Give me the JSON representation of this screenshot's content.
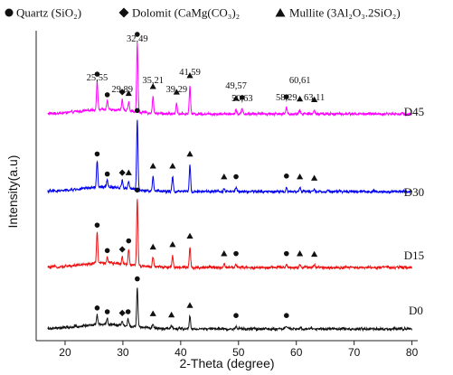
{
  "chart_data": {
    "type": "line",
    "xlabel": "2-Theta (degree)",
    "ylabel": "Intensity(a.u)",
    "xlim": [
      15,
      81
    ],
    "x_ticks": [
      "20",
      "30",
      "40",
      "50",
      "60",
      "70",
      "80"
    ],
    "y_ticks_shown": false,
    "grid": false,
    "legend_position": "top",
    "legend": [
      {
        "name": "Quartz (SiO₂)",
        "marker": "circle",
        "marker_name": "circle-marker-icon"
      },
      {
        "name": "Dolomit (CaMg(CO₃)₂",
        "marker": "diamond",
        "marker_name": "diamond-marker-icon"
      },
      {
        "name": "Mullite (3Al₂O₃.2SiO₂)",
        "marker": "triangle",
        "marker_name": "triangle-marker-icon"
      }
    ],
    "peak_labels": [
      "25,55",
      "29,89",
      "32,49",
      "35,21",
      "39,29",
      "41,59",
      "49,57",
      "50,63",
      "58,29",
      "60,61",
      "63,11"
    ],
    "peak_labels_series": "D45",
    "series": [
      {
        "name": "D45",
        "color": "#ff00ff",
        "peaks": [
          {
            "x": 25.55,
            "h": 0.42,
            "phase": "quartz"
          },
          {
            "x": 27.3,
            "h": 0.12,
            "phase": "quartz"
          },
          {
            "x": 29.89,
            "h": 0.16,
            "phase": "dolomit"
          },
          {
            "x": 31.0,
            "h": 0.14,
            "phase": "mullite"
          },
          {
            "x": 32.49,
            "h": 1.0,
            "phase": "quartz"
          },
          {
            "x": 35.21,
            "h": 0.24,
            "phase": "mullite"
          },
          {
            "x": 39.29,
            "h": 0.16,
            "phase": "mullite"
          },
          {
            "x": 41.59,
            "h": 0.4,
            "phase": "mullite"
          },
          {
            "x": 49.57,
            "h": 0.07,
            "phase": "mullite"
          },
          {
            "x": 50.63,
            "h": 0.08,
            "phase": "quartz"
          },
          {
            "x": 58.29,
            "h": 0.09,
            "phase": "quartz"
          },
          {
            "x": 60.61,
            "h": 0.06,
            "phase": "mullite"
          },
          {
            "x": 63.11,
            "h": 0.05,
            "phase": "mullite"
          }
        ]
      },
      {
        "name": "D30",
        "color": "#0000ee",
        "peaks": [
          {
            "x": 25.55,
            "h": 0.4,
            "phase": "quartz"
          },
          {
            "x": 27.3,
            "h": 0.1,
            "phase": "quartz"
          },
          {
            "x": 29.89,
            "h": 0.12,
            "phase": "dolomit"
          },
          {
            "x": 31.0,
            "h": 0.12,
            "phase": "mullite"
          },
          {
            "x": 32.49,
            "h": 1.05,
            "phase": "quartz"
          },
          {
            "x": 35.21,
            "h": 0.22,
            "phase": "mullite"
          },
          {
            "x": 38.6,
            "h": 0.22,
            "phase": "mullite"
          },
          {
            "x": 41.59,
            "h": 0.4,
            "phase": "mullite"
          },
          {
            "x": 47.5,
            "h": 0.06,
            "phase": "mullite"
          },
          {
            "x": 49.57,
            "h": 0.06,
            "phase": "quartz"
          },
          {
            "x": 58.29,
            "h": 0.07,
            "phase": "quartz"
          },
          {
            "x": 60.61,
            "h": 0.06,
            "phase": "mullite"
          },
          {
            "x": 63.11,
            "h": 0.04,
            "phase": "mullite"
          }
        ]
      },
      {
        "name": "D15",
        "color": "#ee1111",
        "peaks": [
          {
            "x": 25.55,
            "h": 0.52,
            "phase": "quartz"
          },
          {
            "x": 27.3,
            "h": 0.1,
            "phase": "quartz"
          },
          {
            "x": 29.89,
            "h": 0.12,
            "phase": "dolomit"
          },
          {
            "x": 31.0,
            "h": 0.26,
            "phase": "quartz"
          },
          {
            "x": 32.49,
            "h": 1.1,
            "phase": "quartz"
          },
          {
            "x": 35.21,
            "h": 0.16,
            "phase": "mullite"
          },
          {
            "x": 38.6,
            "h": 0.2,
            "phase": "mullite"
          },
          {
            "x": 41.59,
            "h": 0.34,
            "phase": "mullite"
          },
          {
            "x": 47.5,
            "h": 0.05,
            "phase": "mullite"
          },
          {
            "x": 49.57,
            "h": 0.05,
            "phase": "quartz"
          },
          {
            "x": 58.29,
            "h": 0.05,
            "phase": "quartz"
          },
          {
            "x": 60.61,
            "h": 0.05,
            "phase": "mullite"
          },
          {
            "x": 63.11,
            "h": 0.04,
            "phase": "mullite"
          }
        ]
      },
      {
        "name": "D0",
        "color": "#111111",
        "peaks": [
          {
            "x": 25.55,
            "h": 0.16,
            "phase": "quartz"
          },
          {
            "x": 27.3,
            "h": 0.1,
            "phase": "quartz"
          },
          {
            "x": 29.89,
            "h": 0.08,
            "phase": "dolomit"
          },
          {
            "x": 30.9,
            "h": 0.1,
            "phase": "quartz"
          },
          {
            "x": 32.49,
            "h": 0.62,
            "phase": "quartz"
          },
          {
            "x": 35.21,
            "h": 0.07,
            "phase": "mullite"
          },
          {
            "x": 38.4,
            "h": 0.05,
            "phase": "mullite"
          },
          {
            "x": 41.59,
            "h": 0.2,
            "phase": "mullite"
          },
          {
            "x": 49.57,
            "h": 0.04,
            "phase": "quartz"
          },
          {
            "x": 58.29,
            "h": 0.04,
            "phase": "quartz"
          },
          {
            "x": 60.61,
            "h": 0.02,
            "phase": "mullite"
          }
        ]
      }
    ]
  }
}
